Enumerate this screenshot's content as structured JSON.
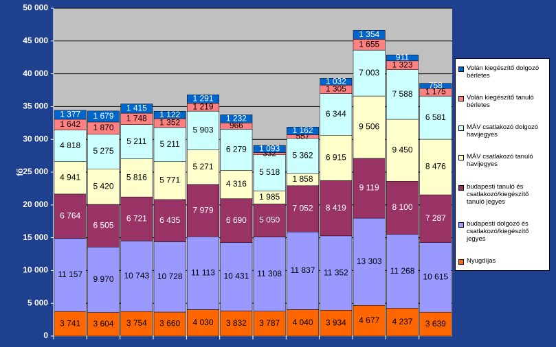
{
  "chart_data": {
    "type": "stacked_bar",
    "y_label": "fő",
    "categories": [
      null,
      null,
      null,
      null,
      null,
      null,
      null,
      null,
      null,
      null,
      null,
      null
    ],
    "ylim": [
      0,
      50000
    ],
    "yticks": [
      {
        "value": 0,
        "label": "0"
      },
      {
        "value": 5000,
        "label": "5 000"
      },
      {
        "value": 10000,
        "label": "10 000"
      },
      {
        "value": 15000,
        "label": "15 000"
      },
      {
        "value": 20000,
        "label": "20 000"
      },
      {
        "value": 25000,
        "label": "25 000"
      },
      {
        "value": 30000,
        "label": "30 000"
      },
      {
        "value": 35000,
        "label": "35 000"
      },
      {
        "value": 40000,
        "label": "40 000"
      },
      {
        "value": 45000,
        "label": "45 000"
      },
      {
        "value": 50000,
        "label": "50 000"
      }
    ],
    "grid": true,
    "legend": "right",
    "series": [
      {
        "name": "Nyugdíjas",
        "color": "#ff6600",
        "values": [
          3741,
          3604,
          3754,
          3660,
          4030,
          3832,
          3787,
          4040,
          3934,
          4677,
          4237,
          3639
        ],
        "value_labels": [
          "3 741",
          "3 604",
          "3 754",
          "3 660",
          "4 030",
          "3 832",
          "3 787",
          "4 040",
          "3 934",
          "4 677",
          "4 237",
          "3 639"
        ]
      },
      {
        "name": "budapesti dolgozó és csatlakozó/kiegészítő jegyes",
        "color": "#9999ff",
        "values": [
          11157,
          9970,
          10743,
          10728,
          11113,
          10431,
          11308,
          11837,
          11352,
          13303,
          11268,
          10615
        ],
        "value_labels": [
          "11 157",
          "9 970",
          "10 743",
          "10 728",
          "11 113",
          "10 431",
          "11 308",
          "11 837",
          "11 352",
          "13 303",
          "11 268",
          "10 615"
        ]
      },
      {
        "name": "budapesti tanuló és csatlakozó/kiegészítő tanuló jegyes",
        "color": "#993366",
        "values": [
          6764,
          6505,
          6721,
          6435,
          7979,
          6690,
          5050,
          7052,
          8419,
          9119,
          8100,
          7287
        ],
        "value_labels": [
          "6 764",
          "6 505",
          "6 721",
          "6 435",
          "7 979",
          "6 690",
          "5 050",
          "7 052",
          "8 419",
          "9 119",
          "8 100",
          "7 287"
        ]
      },
      {
        "name": "MÁV csatlakozó tanuló havijegyes",
        "color": "#ffffcc",
        "values": [
          4941,
          5420,
          5816,
          5771,
          5271,
          4316,
          1985,
          1858,
          6915,
          9506,
          9450,
          8476
        ],
        "value_labels": [
          "4 941",
          "5 420",
          "5 816",
          "5 771",
          "5 271",
          "4 316",
          "1 985",
          "1 858",
          "6 915",
          "9 506",
          "9 450",
          "8 476"
        ]
      },
      {
        "name": "MÁV csatlakozó dolgozó havijegyes",
        "color": "#ccffff",
        "values": [
          4818,
          5275,
          5211,
          5211,
          5903,
          6279,
          5518,
          5362,
          6344,
          7003,
          7588,
          6581
        ],
        "value_labels": [
          "4 818",
          "5 275",
          "5 211",
          "5 211",
          "5 903",
          "6 279",
          "5 518",
          "5 362",
          "6 344",
          "7 003",
          "7 588",
          "6 581"
        ]
      },
      {
        "name": "Volán kiegészítő tanuló bérletes",
        "color": "#ff8080",
        "values": [
          1642,
          1870,
          1748,
          1352,
          1219,
          966,
          332,
          557,
          1305,
          1655,
          1323,
          1175
        ],
        "value_labels": [
          "1 642",
          "1 870",
          "1 748",
          "1 352",
          "1 219",
          "966",
          "332",
          "557",
          "1 305",
          "1 655",
          "1 323",
          "1 175"
        ]
      },
      {
        "name": "Volán kiegészítő dolgozó bérletes",
        "color": "#0066cc",
        "values": [
          1377,
          1679,
          1415,
          1122,
          1291,
          1232,
          1093,
          1162,
          1032,
          1354,
          911,
          758
        ],
        "value_labels": [
          "1 377",
          "1 679",
          "1 415",
          "1 122",
          "1 291",
          "1 232",
          "1 093",
          "1 162",
          "1 032",
          "1 354",
          "911",
          "758"
        ]
      }
    ]
  }
}
